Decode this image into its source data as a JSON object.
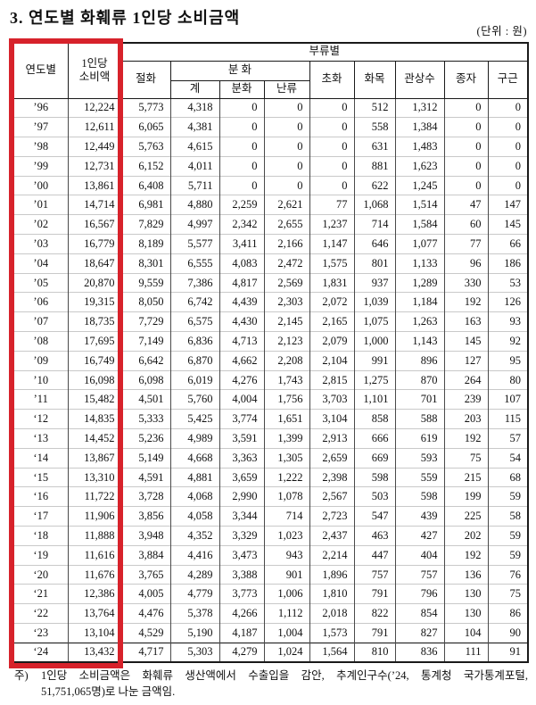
{
  "page": {
    "title": "3. 연도별 화훼류 1인당 소비금액",
    "unit_label": "(단위 : 원)"
  },
  "highlight": {
    "color": "#d7222b"
  },
  "table": {
    "header": {
      "year": "연도별",
      "per_capita_line1": "1인당",
      "per_capita_line2": "소비액",
      "category_group": "부류별",
      "cut_flowers": "절화",
      "potted_group": "분 화",
      "potted_total": "계",
      "potted": "분화",
      "orchids": "난류",
      "herbaceous": "초화",
      "flowering_trees": "화목",
      "ornamental_trees": "관상수",
      "seeds": "종자",
      "bulbs": "구근"
    },
    "rows": [
      {
        "year": "’96",
        "values": [
          "12,224",
          "5,773",
          "4,318",
          "0",
          "0",
          "0",
          "512",
          "1,312",
          "0",
          "0"
        ]
      },
      {
        "year": "’97",
        "values": [
          "12,611",
          "6,065",
          "4,381",
          "0",
          "0",
          "0",
          "558",
          "1,384",
          "0",
          "0"
        ]
      },
      {
        "year": "’98",
        "values": [
          "12,449",
          "5,763",
          "4,615",
          "0",
          "0",
          "0",
          "631",
          "1,483",
          "0",
          "0"
        ]
      },
      {
        "year": "’99",
        "values": [
          "12,731",
          "6,152",
          "4,011",
          "0",
          "0",
          "0",
          "881",
          "1,623",
          "0",
          "0"
        ]
      },
      {
        "year": "’00",
        "values": [
          "13,861",
          "6,408",
          "5,711",
          "0",
          "0",
          "0",
          "622",
          "1,245",
          "0",
          "0"
        ]
      },
      {
        "year": "’01",
        "values": [
          "14,714",
          "6,981",
          "4,880",
          "2,259",
          "2,621",
          "77",
          "1,068",
          "1,514",
          "47",
          "147"
        ]
      },
      {
        "year": "’02",
        "values": [
          "16,567",
          "7,829",
          "4,997",
          "2,342",
          "2,655",
          "1,237",
          "714",
          "1,584",
          "60",
          "145"
        ]
      },
      {
        "year": "’03",
        "values": [
          "16,779",
          "8,189",
          "5,577",
          "3,411",
          "2,166",
          "1,147",
          "646",
          "1,077",
          "77",
          "66"
        ]
      },
      {
        "year": "’04",
        "values": [
          "18,647",
          "8,301",
          "6,555",
          "4,083",
          "2,472",
          "1,575",
          "801",
          "1,133",
          "96",
          "186"
        ]
      },
      {
        "year": "’05",
        "values": [
          "20,870",
          "9,559",
          "7,386",
          "4,817",
          "2,569",
          "1,831",
          "937",
          "1,289",
          "330",
          "53"
        ]
      },
      {
        "year": "’06",
        "values": [
          "19,315",
          "8,050",
          "6,742",
          "4,439",
          "2,303",
          "2,072",
          "1,039",
          "1,184",
          "192",
          "126"
        ]
      },
      {
        "year": "’07",
        "values": [
          "18,735",
          "7,729",
          "6,575",
          "4,430",
          "2,145",
          "2,165",
          "1,075",
          "1,263",
          "163",
          "93"
        ]
      },
      {
        "year": "’08",
        "values": [
          "17,695",
          "7,149",
          "6,836",
          "4,713",
          "2,123",
          "2,079",
          "1,000",
          "1,143",
          "145",
          "92"
        ]
      },
      {
        "year": "’09",
        "values": [
          "16,749",
          "6,642",
          "6,870",
          "4,662",
          "2,208",
          "2,104",
          "991",
          "896",
          "127",
          "95"
        ]
      },
      {
        "year": "’10",
        "values": [
          "16,098",
          "6,098",
          "6,019",
          "4,276",
          "1,743",
          "2,815",
          "1,275",
          "870",
          "264",
          "80"
        ]
      },
      {
        "year": "’11",
        "values": [
          "15,482",
          "4,501",
          "5,760",
          "4,004",
          "1,756",
          "3,703",
          "1,101",
          "701",
          "239",
          "107"
        ]
      },
      {
        "year": "‘12",
        "values": [
          "14,835",
          "5,333",
          "5,425",
          "3,774",
          "1,651",
          "3,104",
          "858",
          "588",
          "203",
          "115"
        ]
      },
      {
        "year": "‘13",
        "values": [
          "14,452",
          "5,236",
          "4,989",
          "3,591",
          "1,399",
          "2,913",
          "666",
          "619",
          "192",
          "57"
        ]
      },
      {
        "year": "‘14",
        "values": [
          "13,867",
          "5,149",
          "4,668",
          "3,363",
          "1,305",
          "2,659",
          "669",
          "593",
          "75",
          "54"
        ]
      },
      {
        "year": "‘15",
        "values": [
          "13,310",
          "4,591",
          "4,881",
          "3,659",
          "1,222",
          "2,398",
          "598",
          "559",
          "215",
          "68"
        ]
      },
      {
        "year": "‘16",
        "values": [
          "11,722",
          "3,728",
          "4,068",
          "2,990",
          "1,078",
          "2,567",
          "503",
          "598",
          "199",
          "59"
        ]
      },
      {
        "year": "‘17",
        "values": [
          "11,906",
          "3,856",
          "4,058",
          "3,344",
          "714",
          "2,723",
          "547",
          "439",
          "225",
          "58"
        ]
      },
      {
        "year": "‘18",
        "values": [
          "11,888",
          "3,948",
          "4,352",
          "3,329",
          "1,023",
          "2,437",
          "463",
          "427",
          "202",
          "59"
        ]
      },
      {
        "year": "‘19",
        "values": [
          "11,616",
          "3,884",
          "4,416",
          "3,473",
          "943",
          "2,214",
          "447",
          "404",
          "192",
          "59"
        ]
      },
      {
        "year": "‘20",
        "values": [
          "11,676",
          "3,765",
          "4,289",
          "3,388",
          "901",
          "1,896",
          "757",
          "757",
          "136",
          "76"
        ]
      },
      {
        "year": "‘21",
        "values": [
          "12,386",
          "4,005",
          "4,779",
          "3,773",
          "1,006",
          "1,810",
          "791",
          "796",
          "130",
          "75"
        ]
      },
      {
        "year": "‘22",
        "values": [
          "13,764",
          "4,476",
          "5,378",
          "4,266",
          "1,112",
          "2,018",
          "822",
          "854",
          "130",
          "86"
        ]
      },
      {
        "year": "‘23",
        "values": [
          "13,104",
          "4,529",
          "5,190",
          "4,187",
          "1,004",
          "1,573",
          "791",
          "827",
          "104",
          "90"
        ]
      },
      {
        "year": "‘24",
        "values": [
          "13,432",
          "4,717",
          "5,303",
          "4,279",
          "1,024",
          "1,564",
          "810",
          "836",
          "111",
          "91"
        ]
      }
    ]
  },
  "footnote": {
    "marker": "주)",
    "line1": "1인당 소비금액은 화훼류 생산액에서 수출입을 감안, 추계인구수(’24, 통계청 국가통계포털,",
    "line2": "51,751,065명)로 나눈 금액임."
  }
}
